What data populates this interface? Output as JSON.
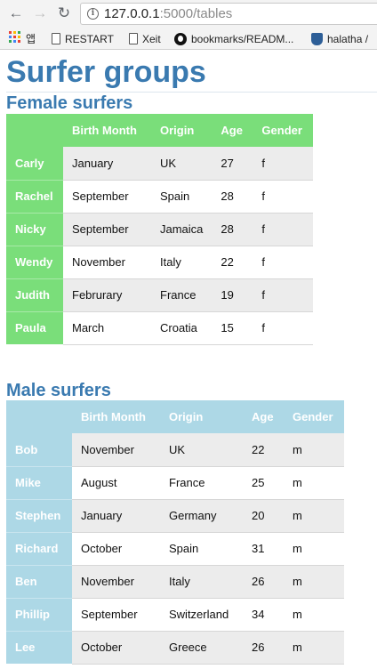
{
  "browser": {
    "url_host": "127.0.0.1",
    "url_rest": ":5000/tables",
    "bookmarks": [
      {
        "label": "앱",
        "icon": "apps-icon"
      },
      {
        "label": "RESTART",
        "icon": "page-icon"
      },
      {
        "label": "Xeit",
        "icon": "page-icon"
      },
      {
        "label": "bookmarks/READM...",
        "icon": "github-icon"
      },
      {
        "label": "halatha /",
        "icon": "shield-icon"
      }
    ]
  },
  "page": {
    "title": "Surfer groups",
    "female": {
      "heading": "Female surfers",
      "headers": [
        "",
        "Birth Month",
        "Origin",
        "Age",
        "Gender"
      ],
      "color": "#7ade7a",
      "rows": [
        [
          "Carly",
          "January",
          "UK",
          "27",
          "f"
        ],
        [
          "Rachel",
          "September",
          "Spain",
          "28",
          "f"
        ],
        [
          "Nicky",
          "September",
          "Jamaica",
          "28",
          "f"
        ],
        [
          "Wendy",
          "November",
          "Italy",
          "22",
          "f"
        ],
        [
          "Judith",
          "Februrary",
          "France",
          "19",
          "f"
        ],
        [
          "Paula",
          "March",
          "Croatia",
          "15",
          "f"
        ]
      ]
    },
    "male": {
      "heading": "Male surfers",
      "headers": [
        "",
        "Birth Month",
        "Origin",
        "Age",
        "Gender"
      ],
      "color": "#add8e6",
      "rows": [
        [
          "Bob",
          "November",
          "UK",
          "22",
          "m"
        ],
        [
          "Mike",
          "August",
          "France",
          "25",
          "m"
        ],
        [
          "Stephen",
          "January",
          "Germany",
          "20",
          "m"
        ],
        [
          "Richard",
          "October",
          "Spain",
          "31",
          "m"
        ],
        [
          "Ben",
          "November",
          "Italy",
          "26",
          "m"
        ],
        [
          "Phillip",
          "September",
          "Switzerland",
          "34",
          "m"
        ],
        [
          "Lee",
          "October",
          "Greece",
          "26",
          "m"
        ]
      ]
    }
  }
}
